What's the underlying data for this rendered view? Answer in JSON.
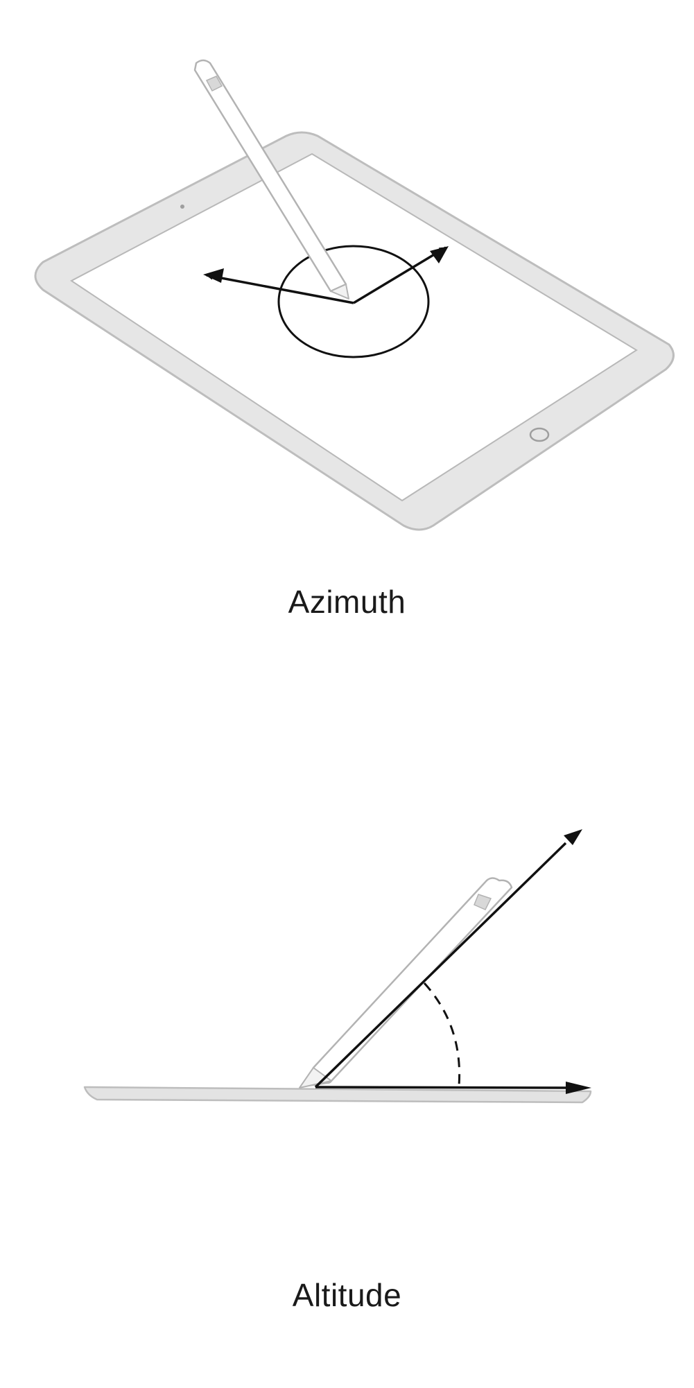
{
  "figures": {
    "azimuth": {
      "caption": "Azimuth"
    },
    "altitude": {
      "caption": "Altitude"
    }
  },
  "colors": {
    "device_fill": "#e6e6e6",
    "device_stroke": "#bdbdbd",
    "screen_fill": "#ffffff",
    "line": "#111111",
    "pencil_stroke": "#b3b3b3"
  }
}
